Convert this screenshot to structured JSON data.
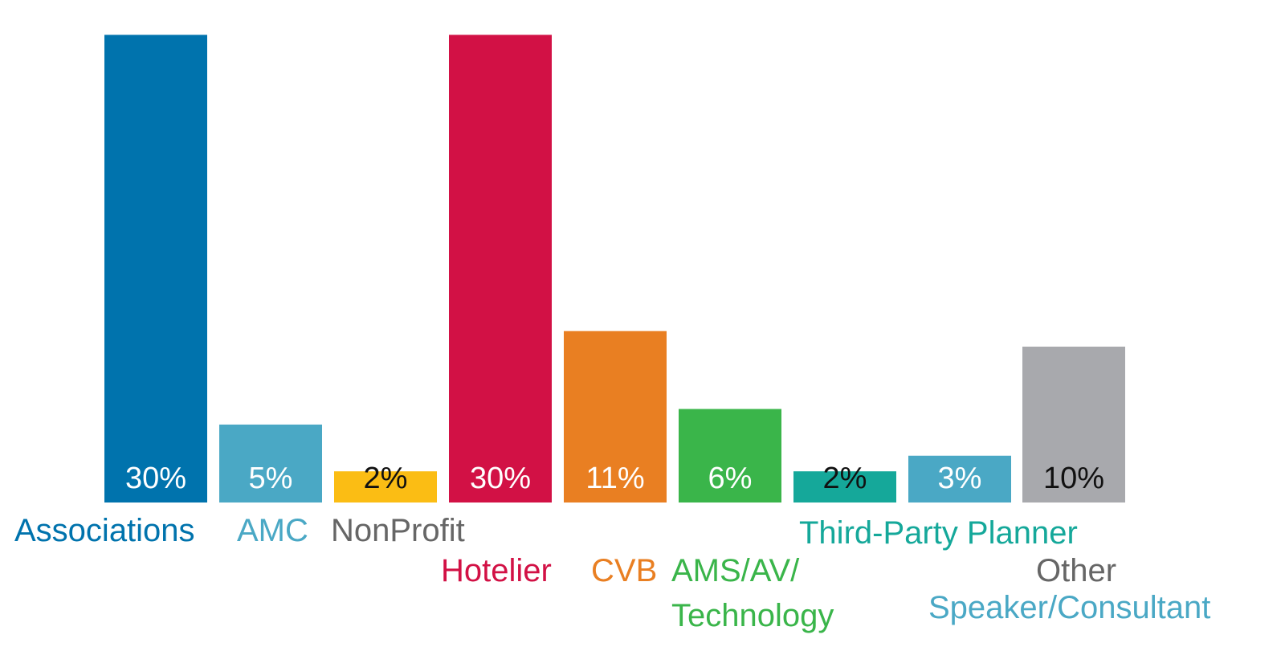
{
  "chart_data": {
    "type": "bar",
    "categories": [
      "Associations",
      "AMC",
      "NonProfit",
      "Hotelier",
      "CVB",
      "AMS/AV/ Technology",
      "Third-Party Planner",
      "Speaker/Consultant",
      "Other"
    ],
    "values": [
      30,
      5,
      2,
      30,
      11,
      6,
      2,
      3,
      10
    ],
    "value_labels": [
      "30%",
      "5%",
      "2%",
      "30%",
      "11%",
      "6%",
      "2%",
      "3%",
      "10%"
    ],
    "ylim": [
      0,
      31
    ],
    "grid": false,
    "bar_colors": [
      "#0073ad",
      "#4aa8c5",
      "#fbbd14",
      "#d21145",
      "#e97f22",
      "#3ab54a",
      "#15a89a",
      "#4aa8c5",
      "#a8a9ad"
    ],
    "label_colors": [
      "#0073ad",
      "#4aa8c5",
      "#666666",
      "#d21145",
      "#e97f22",
      "#3ab54a",
      "#15a89a",
      "#4aa8c5",
      "#666666"
    ],
    "value_label_colors": [
      "#ffffff",
      "#ffffff",
      "#111111",
      "#ffffff",
      "#ffffff",
      "#ffffff",
      "#111111",
      "#ffffff",
      "#111111"
    ],
    "category_lines": [
      [
        "Associations"
      ],
      [
        "AMC"
      ],
      [
        "NonProfit"
      ],
      [
        "Hotelier"
      ],
      [
        "CVB"
      ],
      [
        "AMS/AV/",
        "Technology"
      ],
      [
        "Third-Party Planner"
      ],
      [
        "Speaker/Consultant"
      ],
      [
        "Other"
      ]
    ]
  }
}
